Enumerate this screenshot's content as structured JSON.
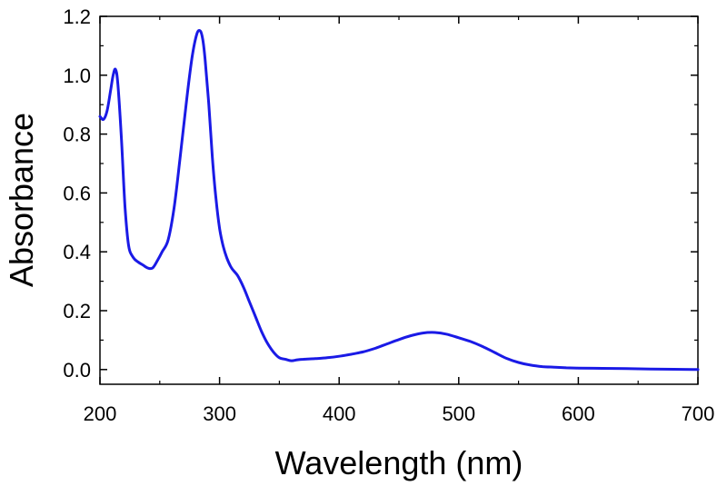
{
  "chart_data": {
    "type": "line",
    "title": "",
    "xlabel": "Wavelength (nm)",
    "ylabel": "Absorbance",
    "xlim": [
      200,
      700
    ],
    "ylim": [
      -0.05,
      1.2
    ],
    "x_ticks": [
      200,
      300,
      400,
      500,
      600,
      700
    ],
    "x_tick_labels": [
      "200",
      "300",
      "400",
      "500",
      "600",
      "700"
    ],
    "y_ticks": [
      0.0,
      0.2,
      0.4,
      0.6,
      0.8,
      1.0,
      1.2
    ],
    "y_tick_labels": [
      "0.0",
      "0.2",
      "0.4",
      "0.6",
      "0.8",
      "1.0",
      "1.2"
    ],
    "grid": false,
    "series": [
      {
        "color": "#1a1ae6",
        "x": [
          200,
          203,
          206,
          209,
          211,
          213,
          215,
          218,
          221,
          224,
          228,
          232,
          236,
          240,
          244,
          248,
          252,
          257,
          262,
          267,
          272,
          277,
          281,
          284,
          286,
          288,
          291,
          294,
          297,
          300,
          303,
          306,
          310,
          315,
          320,
          325,
          330,
          335,
          340,
          345,
          350,
          355,
          360,
          365,
          370,
          380,
          390,
          400,
          410,
          420,
          430,
          440,
          450,
          460,
          470,
          480,
          490,
          500,
          510,
          520,
          530,
          540,
          550,
          560,
          570,
          580,
          590,
          600,
          620,
          640,
          660,
          680,
          700
        ],
        "y": [
          0.86,
          0.85,
          0.88,
          0.95,
          1.0,
          1.02,
          0.97,
          0.78,
          0.55,
          0.42,
          0.38,
          0.365,
          0.355,
          0.345,
          0.345,
          0.37,
          0.4,
          0.44,
          0.55,
          0.72,
          0.9,
          1.06,
          1.14,
          1.15,
          1.12,
          1.05,
          0.9,
          0.72,
          0.58,
          0.48,
          0.42,
          0.38,
          0.345,
          0.32,
          0.28,
          0.23,
          0.18,
          0.13,
          0.09,
          0.06,
          0.04,
          0.035,
          0.03,
          0.033,
          0.035,
          0.037,
          0.04,
          0.045,
          0.052,
          0.06,
          0.072,
          0.087,
          0.102,
          0.115,
          0.124,
          0.126,
          0.12,
          0.108,
          0.095,
          0.078,
          0.058,
          0.038,
          0.024,
          0.015,
          0.01,
          0.008,
          0.006,
          0.005,
          0.004,
          0.003,
          0.002,
          0.001,
          0.0
        ]
      }
    ]
  }
}
